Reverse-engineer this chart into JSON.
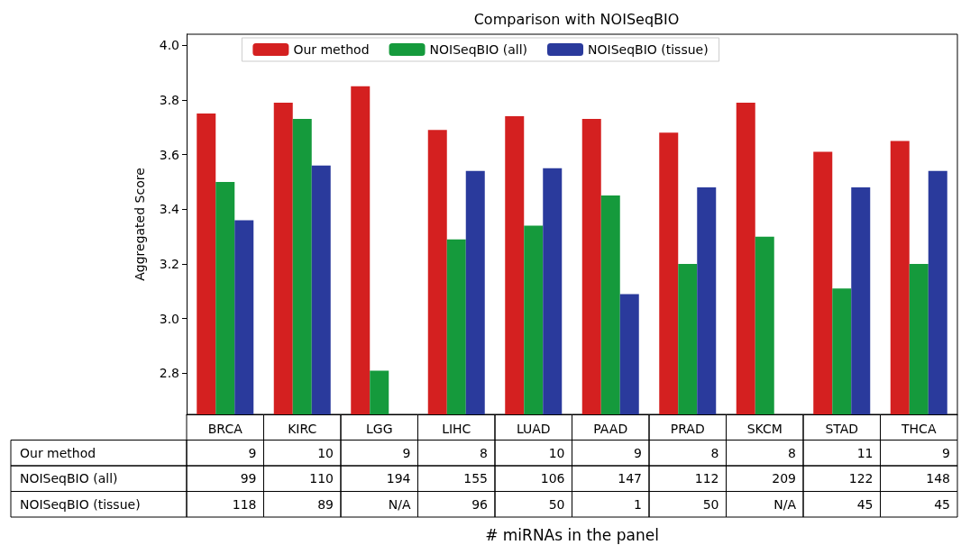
{
  "chart_data": {
    "type": "bar",
    "title": "Comparison with NOISeqBIO",
    "ylabel": "Aggregated Score",
    "categories": [
      "BRCA",
      "KIRC",
      "LGG",
      "LIHC",
      "LUAD",
      "PAAD",
      "PRAD",
      "SKCM",
      "STAD",
      "THCA"
    ],
    "series": [
      {
        "name": "Our method",
        "color": "#d42020",
        "values": [
          3.75,
          3.79,
          3.85,
          3.69,
          3.74,
          3.73,
          3.68,
          3.79,
          3.61,
          3.65
        ]
      },
      {
        "name": "NOISeqBIO (all)",
        "color": "#159a3c",
        "values": [
          3.5,
          3.73,
          2.81,
          3.29,
          3.34,
          3.45,
          3.2,
          3.3,
          3.11,
          3.2
        ]
      },
      {
        "name": "NOISeqBIO (tissue)",
        "color": "#2a3a9c",
        "values": [
          3.36,
          3.56,
          null,
          3.54,
          3.55,
          3.09,
          3.48,
          null,
          3.48,
          3.54
        ]
      }
    ],
    "annotations": [
      "9",
      "10",
      "9",
      "8",
      "10",
      "9",
      "8",
      "8",
      "11",
      "9",
      "99",
      "110",
      "194",
      "155",
      "106",
      "147",
      "112",
      "209",
      "122",
      "148",
      "118",
      "89",
      "N/A",
      "96",
      "50",
      "1",
      "50",
      "N/A",
      "45",
      "45",
      "# miRNAs in the panel"
    ],
    "ylim": [
      2.65,
      4.04
    ],
    "yticks": [
      2.8,
      {
        "value": 3,
        "label": "3.0"
      },
      3.2,
      3.4,
      3.6,
      3.8,
      {
        "value": 4,
        "label": "4.0"
      }
    ],
    "grid": false,
    "legend": "top"
  }
}
